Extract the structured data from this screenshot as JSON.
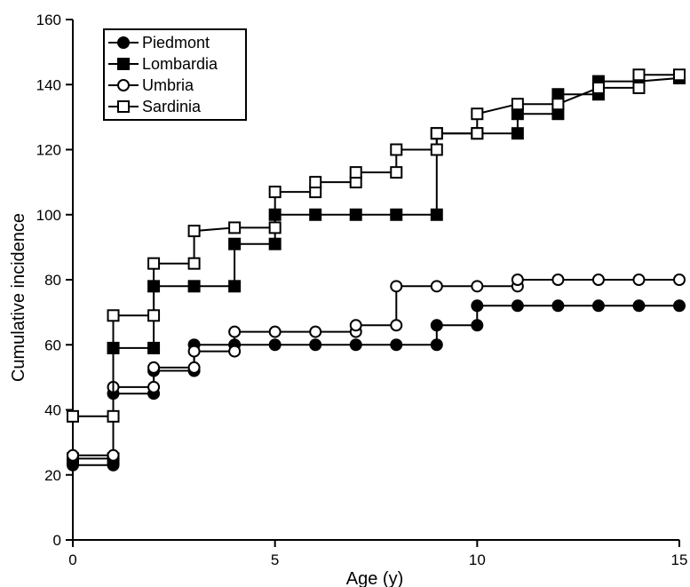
{
  "chart_data": {
    "type": "line",
    "xlabel": "Age (y)",
    "ylabel": "Cumulative incidence",
    "xlim": [
      0,
      15
    ],
    "ylim": [
      0,
      160
    ],
    "xticks": [
      0,
      5,
      10,
      15
    ],
    "yticks": [
      0,
      20,
      40,
      60,
      80,
      100,
      120,
      140,
      160
    ],
    "grid": false,
    "legend_position": "top-left",
    "step": true,
    "series": [
      {
        "name": "Piedmont",
        "marker": "filled-circle",
        "x": [
          0,
          1,
          1,
          2,
          2,
          3,
          3,
          4,
          5,
          6,
          7,
          8,
          9,
          9,
          10,
          10,
          11,
          12,
          13,
          14,
          15
        ],
        "y": [
          23,
          23,
          45,
          45,
          52,
          52,
          60,
          60,
          60,
          60,
          60,
          60,
          60,
          66,
          66,
          72,
          72,
          72,
          72,
          72,
          72
        ]
      },
      {
        "name": "Lombardia",
        "marker": "filled-square",
        "x": [
          0,
          1,
          1,
          2,
          2,
          3,
          4,
          4,
          5,
          5,
          6,
          7,
          8,
          9,
          9,
          10,
          11,
          11,
          12,
          12,
          13,
          13,
          14,
          15
        ],
        "y": [
          25,
          25,
          59,
          59,
          78,
          78,
          78,
          91,
          91,
          100,
          100,
          100,
          100,
          100,
          125,
          125,
          125,
          131,
          131,
          137,
          137,
          141,
          141,
          142
        ]
      },
      {
        "name": "Umbria",
        "marker": "open-circle",
        "x": [
          0,
          1,
          1,
          2,
          2,
          3,
          3,
          4,
          4,
          5,
          6,
          7,
          7,
          8,
          8,
          9,
          10,
          11,
          11,
          12,
          13,
          14,
          15
        ],
        "y": [
          26,
          26,
          47,
          47,
          53,
          53,
          58,
          58,
          64,
          64,
          64,
          64,
          66,
          66,
          78,
          78,
          78,
          78,
          80,
          80,
          80,
          80,
          80
        ]
      },
      {
        "name": "Sardinia",
        "marker": "open-square",
        "x": [
          0,
          1,
          1,
          2,
          2,
          3,
          3,
          4,
          5,
          5,
          6,
          6,
          7,
          7,
          8,
          8,
          9,
          9,
          10,
          10,
          11,
          12,
          13,
          14,
          14,
          15
        ],
        "y": [
          38,
          38,
          69,
          69,
          85,
          85,
          95,
          96,
          96,
          107,
          107,
          110,
          110,
          113,
          113,
          120,
          120,
          125,
          125,
          131,
          134,
          134,
          139,
          139,
          143,
          143
        ]
      }
    ]
  }
}
